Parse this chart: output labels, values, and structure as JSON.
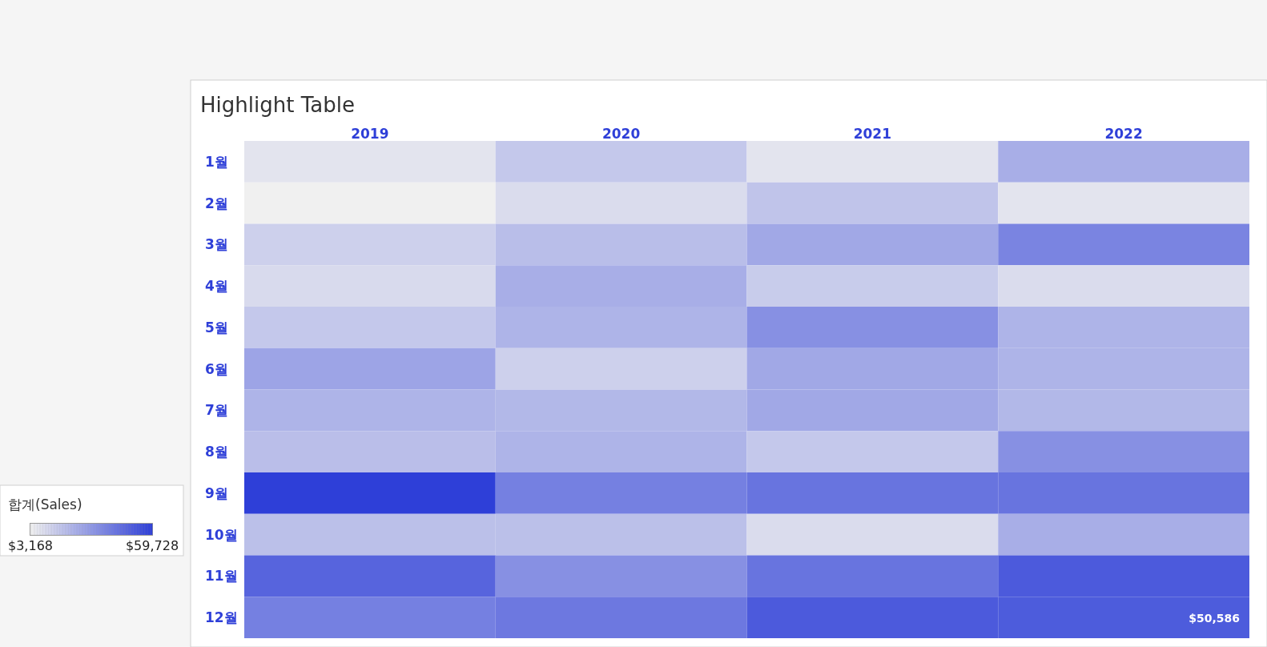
{
  "chart_data": {
    "type": "heatmap",
    "title": "Highlight Table",
    "clabel": "합계(Sales)",
    "categories": [
      "2019",
      "2020",
      "2021",
      "2022"
    ],
    "y_categories": [
      "1월",
      "2월",
      "3월",
      "4월",
      "5월",
      "6월",
      "7월",
      "8월",
      "9월",
      "10월",
      "11월",
      "12월"
    ],
    "cells": [
      [
        7000,
        15900,
        7000,
        24300
      ],
      [
        3200,
        9600,
        17200,
        7000
      ],
      [
        13400,
        19100,
        26200,
        37700
      ],
      [
        10200,
        24300,
        14700,
        9600
      ],
      [
        15900,
        22300,
        33900,
        22300
      ],
      [
        27400,
        13400,
        26200,
        22300
      ],
      [
        22300,
        21100,
        26200,
        21100
      ],
      [
        19000,
        22300,
        15900,
        33900
      ],
      [
        59700,
        39000,
        42800,
        42800
      ],
      [
        18500,
        18500,
        9600,
        24300
      ],
      [
        47900,
        33900,
        42800,
        51100
      ],
      [
        39000,
        41500,
        51100,
        50586
      ]
    ],
    "cell_labels": [
      [
        null,
        null,
        null,
        null
      ],
      [
        null,
        null,
        null,
        null
      ],
      [
        null,
        null,
        null,
        null
      ],
      [
        null,
        null,
        null,
        null
      ],
      [
        null,
        null,
        null,
        null
      ],
      [
        null,
        null,
        null,
        null
      ],
      [
        null,
        null,
        null,
        null
      ],
      [
        null,
        null,
        null,
        null
      ],
      [
        null,
        null,
        null,
        null
      ],
      [
        null,
        null,
        null,
        null
      ],
      [
        null,
        null,
        null,
        null
      ],
      [
        null,
        null,
        null,
        "$50,586"
      ]
    ],
    "clim": [
      3168,
      59728
    ],
    "cticks": [
      {
        "value": 3168,
        "label": "$3,168"
      },
      {
        "value": 59728,
        "label": "$59,728"
      }
    ]
  }
}
